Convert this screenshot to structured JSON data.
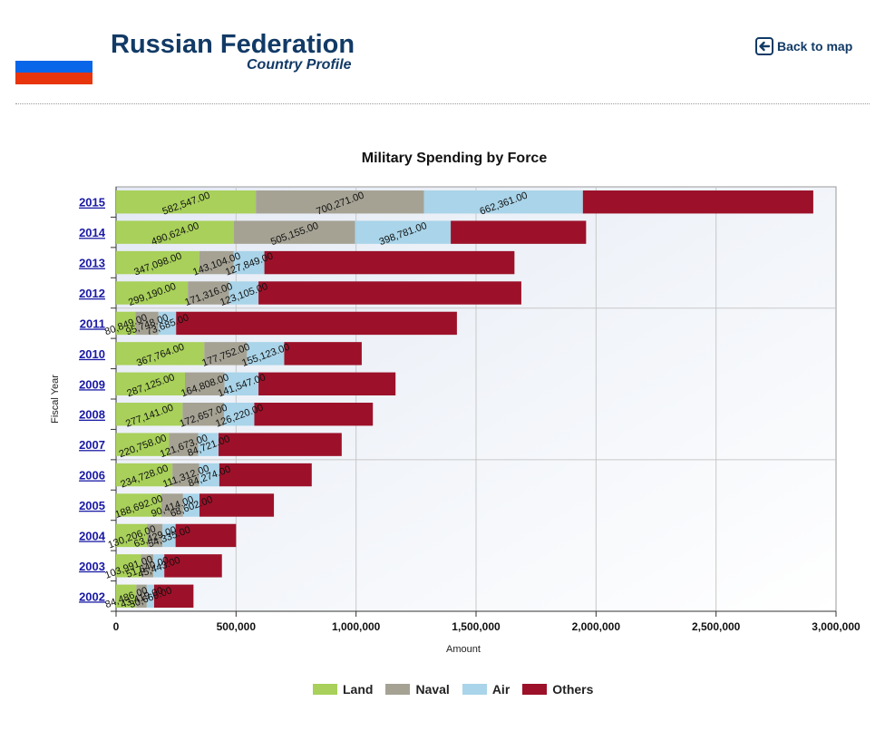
{
  "header": {
    "title": "Russian Federation",
    "subtitle": "Country Profile",
    "back_label": "Back to map",
    "flag_colors": [
      "#ffffff",
      "#0a66e8",
      "#e8350c"
    ]
  },
  "chart_data": {
    "type": "bar",
    "orientation": "horizontal",
    "stacked": true,
    "title": "Military Spending by Force",
    "xlabel": "Amount",
    "ylabel": "Fiscal Year",
    "xlim": [
      0,
      3000000
    ],
    "x_ticks": [
      0,
      500000,
      1000000,
      1500000,
      2000000,
      2500000,
      3000000
    ],
    "x_tick_labels": [
      "0",
      "500,000",
      "1,000,000",
      "1,500,000",
      "2,000,000",
      "2,500,000",
      "3,000,000"
    ],
    "grid": true,
    "legend_position": "bottom",
    "categories": [
      "2015",
      "2014",
      "2013",
      "2012",
      "2011",
      "2010",
      "2009",
      "2008",
      "2007",
      "2006",
      "2005",
      "2004",
      "2003",
      "2002"
    ],
    "series": [
      {
        "name": "Land",
        "color": "#a8d05a",
        "values": [
          582547,
          490624,
          347098,
          299190,
          80849,
          367764,
          287125,
          277141,
          220758,
          234728,
          188692,
          130206,
          103991,
          84486
        ],
        "labels": [
          "582,547.00",
          "490,624.00",
          "347,098.00",
          "299,190.00",
          "80,849.00",
          "367,764.00",
          "287,125.00",
          "277,141.00",
          "220,758.00",
          "234,728.00",
          "188,692.00",
          "130,206.00",
          "103,991.00",
          "84,486.00"
        ]
      },
      {
        "name": "Naval",
        "color": "#a5a294",
        "values": [
          700271,
          505155,
          143104,
          171316,
          95748,
          177752,
          164808,
          172657,
          121673,
          111312,
          90414,
          63429,
          51640,
          43419
        ],
        "labels": [
          "700,271.00",
          "505,155.00",
          "143,104.00",
          "171,316.00",
          "95,748.00",
          "177,752.00",
          "164,808.00",
          "172,657.00",
          "121,673.00",
          "111,312.00",
          "90,414.00",
          "63,429.00",
          "51,640.00",
          "43,419.00"
        ]
      },
      {
        "name": "Air",
        "color": "#a9d4e9",
        "values": [
          662361,
          398781,
          127849,
          123105,
          73685,
          155123,
          141547,
          126220,
          84721,
          84274,
          68602,
          54335,
          45443,
          30660
        ],
        "labels": [
          "662,361.00",
          "398,781.00",
          "127,849.00",
          "123,105.00",
          "73,685.00",
          "155,123.00",
          "141,547.00",
          "126,220.00",
          "84,721.00",
          "84,274.00",
          "68,602.00",
          "54,335.00",
          "45,443.00",
          "30,660.00"
        ]
      },
      {
        "name": "Others",
        "color": "#9c1129",
        "values": [
          960000,
          564000,
          1042000,
          1095000,
          1170000,
          323000,
          571000,
          494000,
          513000,
          385000,
          310000,
          252000,
          240000,
          164000
        ]
      }
    ]
  }
}
